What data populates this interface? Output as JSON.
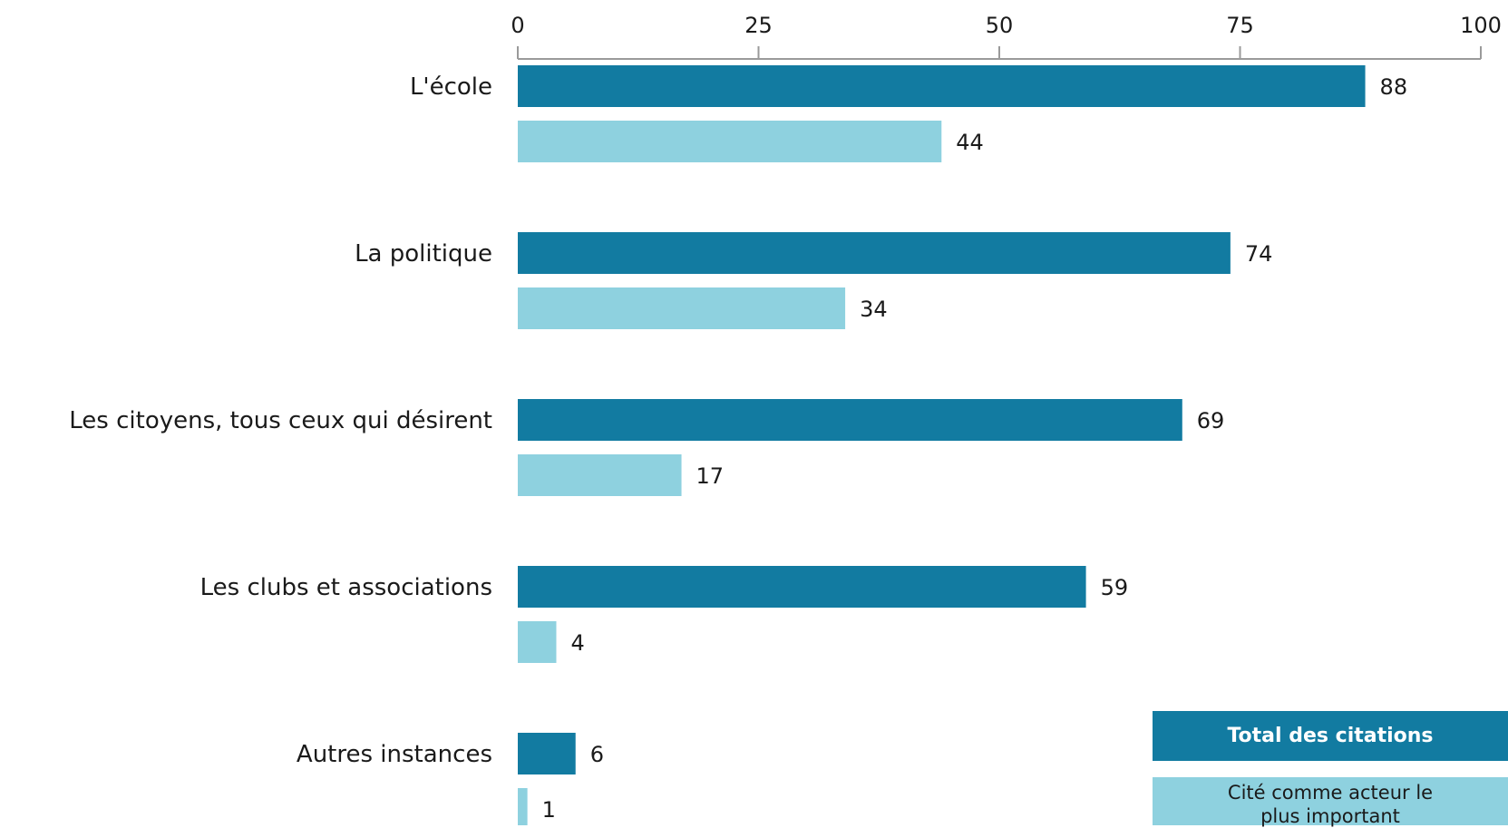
{
  "colors": {
    "total": "#127ba1",
    "important": "#8ed1df",
    "axis": "#9a9a9a"
  },
  "legend": {
    "total_label": "Total des citations",
    "important_label": "Cité comme acteur le plus important"
  },
  "chart_data": {
    "type": "bar",
    "orientation": "horizontal",
    "categories": [
      "L'école",
      "La politique",
      "Les citoyens, tous ceux qui désirent",
      "Les clubs et associations",
      "Autres instances"
    ],
    "series": [
      {
        "name": "Total des citations",
        "values": [
          88,
          74,
          69,
          59,
          6
        ]
      },
      {
        "name": "Cité comme acteur le plus important",
        "values": [
          44,
          34,
          17,
          4,
          1
        ]
      }
    ],
    "xlim": [
      0,
      100
    ],
    "xticks": [
      0,
      25,
      50,
      75,
      100
    ],
    "axis_position": "top",
    "grid": false,
    "legend_position": "bottom-right"
  }
}
